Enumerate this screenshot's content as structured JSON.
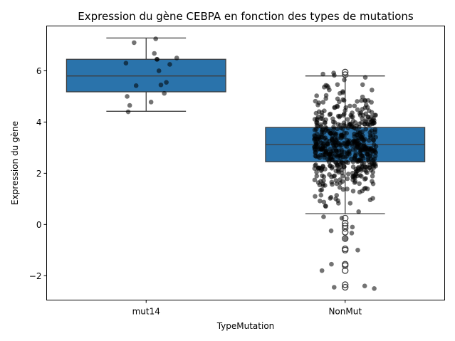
{
  "chart_data": {
    "type": "box",
    "title": "Expression du gène CEBPA en fonction des types de mutations",
    "xlabel": "TypeMutation",
    "ylabel": "Expression du gène",
    "categories": [
      "mut14",
      "NonMut"
    ],
    "ylim": [
      -2.95,
      7.75
    ],
    "yticks": [
      -2,
      0,
      2,
      4,
      6
    ],
    "ytick_labels": [
      "−2",
      "0",
      "2",
      "4",
      "6"
    ],
    "box_color": "#2a73ab",
    "boxes": [
      {
        "category": "mut14",
        "whisker_low": 4.42,
        "q1": 5.18,
        "median": 5.8,
        "q3": 6.45,
        "whisker_high": 7.28,
        "outliers": []
      },
      {
        "category": "NonMut",
        "whisker_low": 0.42,
        "q1": 2.45,
        "median": 3.12,
        "q3": 3.79,
        "whisker_high": 5.8,
        "outliers": [
          5.95,
          5.85,
          0.25,
          0.05,
          -0.05,
          -0.15,
          -0.3,
          -0.55,
          -0.95,
          -1.0,
          -1.55,
          -1.6,
          -1.8,
          -2.35,
          -2.45
        ]
      }
    ],
    "points": [
      {
        "category": "mut14",
        "values": [
          7.25,
          7.1,
          6.68,
          6.5,
          6.45,
          6.45,
          6.3,
          6.25,
          6.0,
          5.55,
          5.45,
          5.42,
          5.12,
          5.0,
          4.78,
          4.65,
          4.4
        ]
      },
      {
        "category": "NonMut",
        "n": 560,
        "median": 3.12,
        "q1": 2.45,
        "q3": 3.79,
        "min": -2.5,
        "max": 5.95,
        "low_tail": [
          -0.55,
          -1.0,
          -1.55,
          -1.8,
          -2.4,
          -2.45,
          -2.5,
          -0.1,
          0.3,
          0.5
        ]
      }
    ]
  }
}
